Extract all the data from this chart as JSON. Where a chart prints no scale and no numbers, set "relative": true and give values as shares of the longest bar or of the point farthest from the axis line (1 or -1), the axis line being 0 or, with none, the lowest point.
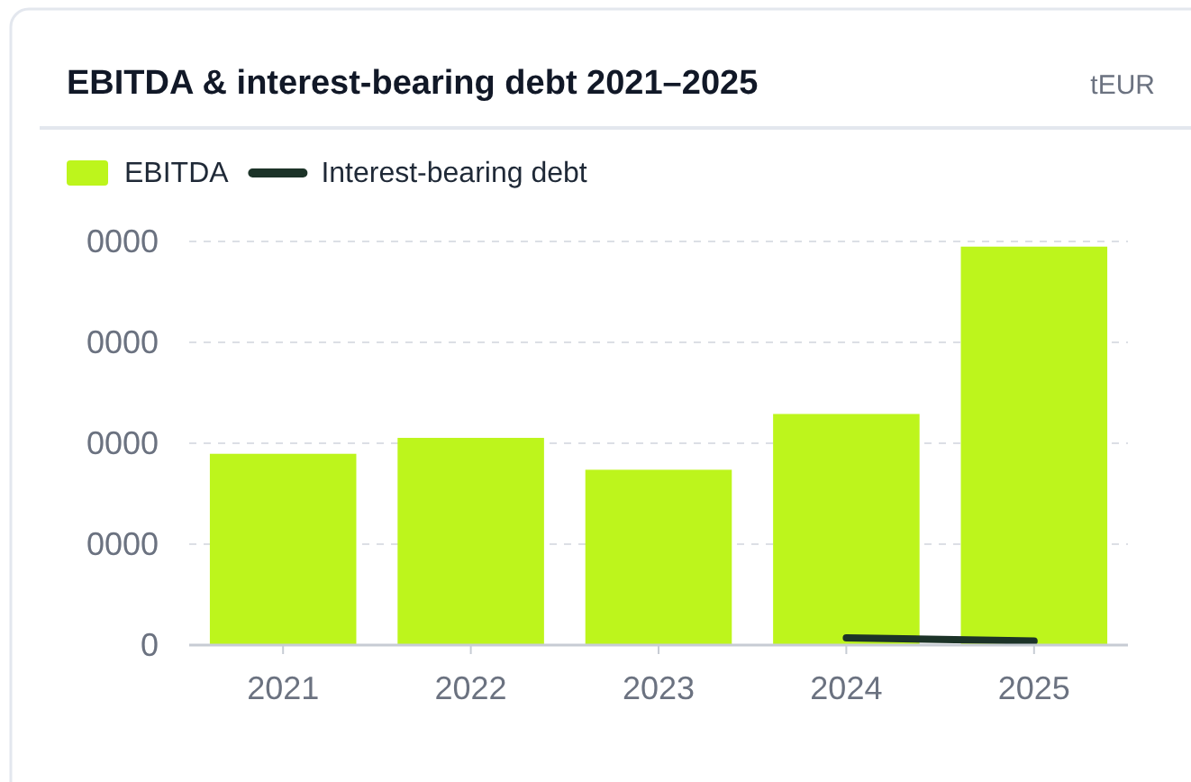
{
  "chart_data": {
    "type": "bar",
    "title": "EBITDA & interest-bearing debt 2021–2025",
    "annotations": [
      "tEUR",
      "0",
      "0000",
      "0000",
      "0000",
      "0000"
    ],
    "categories": [
      "2021",
      "2022",
      "2023",
      "2024",
      "2025"
    ],
    "series": [
      {
        "name": "EBITDA",
        "color": "#bdf51c",
        "values": [
          0.48,
          0.52,
          0.44,
          0.58,
          1
        ]
      },
      {
        "name": "Interest-bearing debt",
        "type": "line",
        "color": "#1c3328",
        "values": [
          null,
          null,
          null,
          0.018,
          0.01
        ]
      }
    ],
    "relative": true,
    "grid": "y",
    "legend": "top left",
    "marker": "none",
    "line_style": "solid"
  }
}
